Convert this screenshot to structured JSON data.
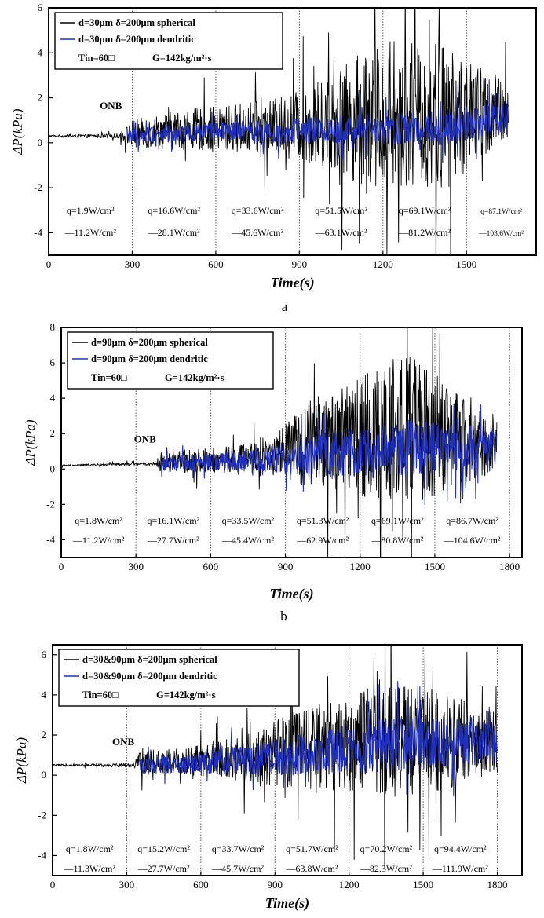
{
  "panels": [
    {
      "label": "a",
      "onb_label": "ONB",
      "legend": {
        "lines": [
          "d=30μm δ=200μm  spherical",
          "d=30μm δ=200μm  dendritic"
        ],
        "conditions": [
          "Tin=60□",
          "G=142kg/m²·s"
        ]
      },
      "heat_flux": [
        {
          "top": "q=1.9W/cm²",
          "bottom": "—11.2W/cm²"
        },
        {
          "top": "q=16.6W/cm²",
          "bottom": "—28.1W/cm²"
        },
        {
          "top": "q=33.6W/cm²",
          "bottom": "—45.6W/cm²"
        },
        {
          "top": "q=51.5W/cm²",
          "bottom": "—63.1W/cm²"
        },
        {
          "top": "q=69.1W/cm²",
          "bottom": "—81.2W/cm²"
        },
        {
          "top": "q=87.1W/cm²",
          "bottom": "—103.6W/cm²"
        }
      ]
    },
    {
      "label": "b",
      "onb_label": "ONB",
      "legend": {
        "lines": [
          "d=90μm δ=200μm  spherical",
          "d=90μm δ=200μm  dendritic"
        ],
        "conditions": [
          "Tin=60□",
          "G=142kg/m²·s"
        ]
      },
      "heat_flux": [
        {
          "top": "q=1.8W/cm²",
          "bottom": "—11.2W/cm²"
        },
        {
          "top": "q=16.1W/cm²",
          "bottom": "—27.7W/cm²"
        },
        {
          "top": "q=33.5W/cm²",
          "bottom": "—45.4W/cm²"
        },
        {
          "top": "q=51.3W/cm²",
          "bottom": "—62.9W/cm²"
        },
        {
          "top": "q=69.1W/cm²",
          "bottom": "—80.8W/cm²"
        },
        {
          "top": "q=86.7W/cm²",
          "bottom": "—104.6W/cm²"
        }
      ]
    },
    {
      "label": "",
      "onb_label": "ONB",
      "legend": {
        "lines": [
          "d=30&90μm δ=200μm  spherical",
          "d=30&90μm δ=200μm  dendritic"
        ],
        "conditions": [
          "Tin=60□",
          "G=142kg/m²·s"
        ]
      },
      "heat_flux": [
        {
          "top": "q=1.8W/cm²",
          "bottom": "—11.3W/cm²"
        },
        {
          "top": "q=15.2W/cm²",
          "bottom": "—27.7W/cm²"
        },
        {
          "top": "q=33.7W/cm²",
          "bottom": "—45.7W/cm²"
        },
        {
          "top": "q=51.7W/cm²",
          "bottom": "—63.8W/cm²"
        },
        {
          "top": "q=70.2W/cm²",
          "bottom": "—82.3W/cm²"
        },
        {
          "top": "q=94.4W/cm²",
          "bottom": "—111.9W/cm²"
        }
      ]
    }
  ],
  "colors": {
    "spherical": "#000000",
    "dendritic": "#1f2fbf",
    "axis": "#000000",
    "grid": "#555555"
  },
  "chart_data": [
    {
      "type": "line",
      "title": "",
      "xlabel": "Time(s)",
      "ylabel": "ΔP(kPa)",
      "xlim": [
        0,
        1750
      ],
      "ylim": [
        -5,
        6
      ],
      "x_ticks": [
        0,
        300,
        600,
        900,
        1200,
        1500
      ],
      "y_ticks": [
        -4,
        -2,
        0,
        2,
        4,
        6
      ],
      "stage_boundaries": [
        300,
        600,
        900,
        1200,
        1500
      ],
      "onb_time": 280,
      "series": [
        {
          "name": "d=30μm δ=200μm  spherical",
          "color": "#000000",
          "x": [
            0,
            250,
            300,
            400,
            500,
            600,
            700,
            800,
            900,
            1000,
            1100,
            1150,
            1200,
            1300,
            1400,
            1450,
            1500,
            1600,
            1650
          ],
          "baseline": [
            0.3,
            0.3,
            0.4,
            0.5,
            0.6,
            0.6,
            0.7,
            0.7,
            0.8,
            0.9,
            1.0,
            1.1,
            1.0,
            1.1,
            1.2,
            1.1,
            1.2,
            1.3,
            1.3
          ],
          "amplitude": [
            0.05,
            0.1,
            0.6,
            0.8,
            0.9,
            1.0,
            1.1,
            1.2,
            1.6,
            2.0,
            2.8,
            3.5,
            3.0,
            3.0,
            3.5,
            3.0,
            2.5,
            1.8,
            1.5
          ]
        },
        {
          "name": "d=30μm δ=200μm  dendritic",
          "color": "#1f2fbf",
          "x": [
            280,
            400,
            600,
            800,
            1000,
            1200,
            1400,
            1600,
            1650
          ],
          "baseline": [
            0.3,
            0.4,
            0.5,
            0.5,
            0.6,
            0.6,
            0.7,
            0.9,
            1.0
          ],
          "amplitude": [
            0.3,
            0.4,
            0.4,
            0.5,
            0.6,
            0.7,
            0.8,
            0.9,
            0.9
          ]
        }
      ]
    },
    {
      "type": "line",
      "title": "",
      "xlabel": "Time(s)",
      "ylabel": "ΔP(kPa)",
      "xlim": [
        0,
        1850
      ],
      "ylim": [
        -5,
        8
      ],
      "x_ticks": [
        0,
        300,
        600,
        900,
        1200,
        1500,
        1800
      ],
      "y_ticks": [
        -4,
        -2,
        0,
        2,
        4,
        6,
        8
      ],
      "stage_boundaries": [
        300,
        600,
        900,
        1200,
        1500,
        1800
      ],
      "onb_time": 400,
      "series": [
        {
          "name": "d=90μm δ=200μm  spherical",
          "color": "#000000",
          "x": [
            0,
            380,
            400,
            600,
            800,
            900,
            1000,
            1100,
            1200,
            1300,
            1400,
            1500,
            1600,
            1700,
            1750
          ],
          "baseline": [
            0.2,
            0.3,
            0.4,
            0.5,
            0.6,
            1.0,
            1.4,
            1.6,
            1.8,
            2.0,
            2.2,
            2.0,
            1.6,
            1.3,
            1.2
          ],
          "amplitude": [
            0.05,
            0.1,
            0.6,
            0.7,
            0.9,
            1.5,
            2.5,
            3.0,
            3.5,
            4.0,
            4.5,
            3.5,
            2.5,
            1.8,
            1.5
          ]
        },
        {
          "name": "d=90μm δ=200μm  dendritic",
          "color": "#1f2fbf",
          "x": [
            400,
            600,
            800,
            900,
            1000,
            1200,
            1400,
            1600,
            1750
          ],
          "baseline": [
            0.3,
            0.4,
            0.5,
            0.6,
            0.8,
            1.0,
            1.2,
            1.2,
            1.3
          ],
          "amplitude": [
            0.4,
            0.5,
            0.6,
            0.9,
            1.2,
            1.4,
            1.6,
            1.3,
            1.1
          ]
        }
      ]
    },
    {
      "type": "line",
      "title": "",
      "xlabel": "Time(s)",
      "ylabel": "ΔP(kPa)",
      "xlim": [
        0,
        1900
      ],
      "ylim": [
        -5,
        6.5
      ],
      "x_ticks": [
        0,
        300,
        600,
        900,
        1200,
        1500,
        1800
      ],
      "y_ticks": [
        -4,
        -2,
        0,
        2,
        4,
        6
      ],
      "stage_boundaries": [
        300,
        600,
        900,
        1200,
        1500,
        1800
      ],
      "onb_time": 350,
      "series": [
        {
          "name": "d=30&90μm δ=200μm  spherical",
          "color": "#000000",
          "x": [
            0,
            330,
            350,
            600,
            800,
            900,
            1000,
            1200,
            1400,
            1500,
            1600,
            1800
          ],
          "baseline": [
            0.5,
            0.5,
            0.6,
            0.7,
            0.9,
            1.1,
            1.3,
            1.6,
            1.8,
            1.9,
            1.7,
            1.6
          ],
          "amplitude": [
            0.05,
            0.1,
            0.6,
            0.8,
            1.2,
            1.6,
            2.0,
            2.4,
            2.8,
            2.8,
            2.4,
            1.5
          ]
        },
        {
          "name": "d=30&90μm δ=200μm  dendritic",
          "color": "#1f2fbf",
          "x": [
            350,
            600,
            800,
            1000,
            1200,
            1400,
            1600,
            1800
          ],
          "baseline": [
            0.5,
            0.6,
            0.8,
            1.0,
            1.3,
            1.6,
            1.6,
            1.6
          ],
          "amplitude": [
            0.4,
            0.5,
            0.8,
            1.0,
            1.2,
            1.4,
            1.3,
            1.0
          ]
        }
      ]
    }
  ]
}
